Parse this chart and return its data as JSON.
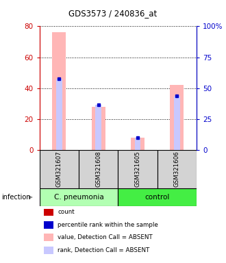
{
  "title": "GDS3573 / 240836_at",
  "samples": [
    "GSM321607",
    "GSM321608",
    "GSM321605",
    "GSM321606"
  ],
  "left_ylim": [
    0,
    80
  ],
  "right_ylim": [
    0,
    100
  ],
  "left_yticks": [
    0,
    20,
    40,
    60,
    80
  ],
  "right_yticks": [
    0,
    25,
    50,
    75,
    100
  ],
  "left_yticklabels": [
    "0",
    "20",
    "40",
    "60",
    "80"
  ],
  "right_yticklabels": [
    "0",
    "25",
    "50",
    "75",
    "100%"
  ],
  "left_color": "#cc0000",
  "right_color": "#0000cc",
  "bar_value_absent": [
    76,
    28,
    8,
    42
  ],
  "bar_rank_absent_blue": [
    46,
    29,
    8,
    35
  ],
  "bar_value_color": "#ffb6b6",
  "bar_rank_color": "#c8c8ff",
  "dot_blue_value": [
    46,
    29,
    8,
    35
  ],
  "infection_label": "infection",
  "group_spans": [
    {
      "label": "C. pneumonia",
      "start": 0,
      "end": 2,
      "color": "#b2ffb2"
    },
    {
      "label": "control",
      "start": 2,
      "end": 4,
      "color": "#44ee44"
    }
  ],
  "legend_items": [
    {
      "color": "#cc0000",
      "label": "count"
    },
    {
      "color": "#0000cc",
      "label": "percentile rank within the sample"
    },
    {
      "color": "#ffb6b6",
      "label": "value, Detection Call = ABSENT"
    },
    {
      "color": "#c8c8ff",
      "label": "rank, Detection Call = ABSENT"
    }
  ]
}
